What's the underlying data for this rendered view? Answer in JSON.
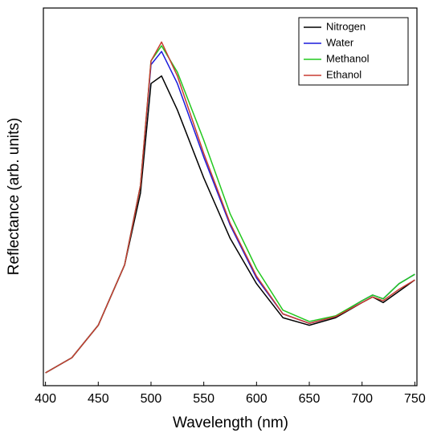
{
  "chart_data": {
    "type": "line",
    "x_label": "Wavelength (nm)",
    "y_label": "Reflectance (arb. units)",
    "x": [
      400,
      425,
      450,
      475,
      490,
      500,
      510,
      525,
      550,
      575,
      600,
      625,
      650,
      675,
      700,
      710,
      720,
      735,
      750
    ],
    "series": [
      {
        "name": "Nitrogen",
        "color": "#000000",
        "values": [
          3.4,
          7.4,
          16,
          32,
          51,
          80,
          82,
          73,
          55,
          39,
          27,
          18,
          16,
          18,
          22,
          23.5,
          22,
          25,
          28
        ]
      },
      {
        "name": "Water",
        "color": "#1a1adc",
        "values": [
          3.4,
          7.4,
          16,
          32,
          53,
          85,
          88.5,
          80,
          60.5,
          42.5,
          28.5,
          19,
          16.5,
          18.3,
          22.5,
          24,
          23,
          27,
          29.5
        ]
      },
      {
        "name": "Methanol",
        "color": "#22c81e",
        "values": [
          3.4,
          7.4,
          16,
          32,
          53,
          86,
          90,
          83,
          65,
          45.5,
          31,
          20,
          17,
          18.5,
          22.5,
          24,
          23,
          27,
          29.5
        ]
      },
      {
        "name": "Ethanol",
        "color": "#c83c32",
        "values": [
          3.4,
          7.4,
          16,
          32,
          53,
          86,
          91,
          82,
          61.5,
          43,
          29,
          19,
          16.5,
          18.3,
          22,
          23.5,
          22.5,
          25.5,
          28
        ]
      }
    ],
    "xlim": [
      398,
      752
    ],
    "xticks": [
      400,
      450,
      500,
      550,
      600,
      650,
      700,
      750
    ],
    "ylim": [
      0,
      100
    ],
    "legend": "upper right"
  }
}
